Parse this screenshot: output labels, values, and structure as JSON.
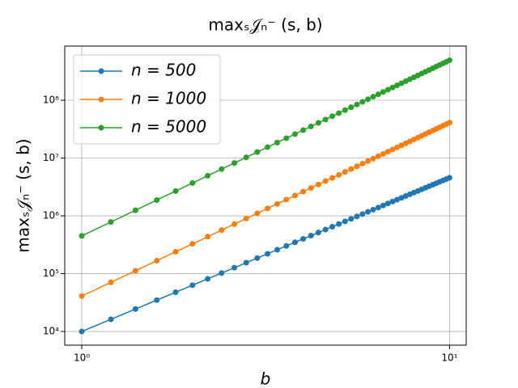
{
  "chart_data": {
    "type": "line",
    "title": "maxₛ𝒥ₙ⁻ (s, b)",
    "xlabel": "b",
    "ylabel": "maxₛ𝒥ₙ⁻ (s, b)",
    "xscale": "log",
    "yscale": "log",
    "grid": true,
    "legend": "upper left",
    "xlim": [
      0.899,
      11.1
    ],
    "ylim": [
      5800,
      865000000
    ],
    "xticks": [
      {
        "value": 1,
        "label": "10⁰"
      },
      {
        "value": 10,
        "label": "10¹"
      }
    ],
    "yticks": [
      {
        "value": 10000,
        "label": "10⁴"
      },
      {
        "value": 100000,
        "label": "10⁵"
      },
      {
        "value": 1000000,
        "label": "10⁶"
      },
      {
        "value": 10000000,
        "label": "10⁷"
      },
      {
        "value": 100000000,
        "label": "10⁸"
      }
    ],
    "x": [
      1.0,
      1.2,
      1.4,
      1.6,
      1.8,
      2.0,
      2.2,
      2.4,
      2.6,
      2.8,
      3.0,
      3.2,
      3.4,
      3.6,
      3.8,
      4.0,
      4.2,
      4.4,
      4.6,
      4.8,
      5.0,
      5.2,
      5.4,
      5.6,
      5.8,
      6.0,
      6.2,
      6.4,
      6.6,
      6.8,
      7.0,
      7.2,
      7.4,
      7.6,
      7.8,
      8.0,
      8.2,
      8.4,
      8.6,
      8.8,
      9.0,
      9.2,
      9.4,
      9.6,
      9.8,
      10.0
    ],
    "series": [
      {
        "name": "n = 500",
        "color": "#1f77b4",
        "values": [
          10000,
          16240,
          24470,
          34910,
          47770,
          63180,
          81430,
          102600,
          127000,
          154700,
          185800,
          220600,
          259300,
          301900,
          348500,
          399600,
          454800,
          514900,
          579400,
          648600,
          723300,
          802900,
          887600,
          977700,
          1073000,
          1175000,
          1282000,
          1395000,
          1513000,
          1639000,
          1770000,
          1907000,
          2051000,
          2203000,
          2360000,
          2525000,
          2696000,
          2875000,
          3061000,
          3254000,
          3453000,
          3662000,
          3877000,
          4102000,
          4332000,
          4571000
        ]
      },
      {
        "name": "n = 1000",
        "color": "#ff7f0e",
        "values": [
          41000,
          70850,
          112500,
          167900,
          239100,
          328000,
          436600,
          566800,
          720600,
          900000,
          1107000,
          1343000,
          1611000,
          1913000,
          2250000,
          2624000,
          3038000,
          3493000,
          3991000,
          4534000,
          5125000,
          5765000,
          6456000,
          7200000,
          8000000,
          8856000,
          9771000,
          10750000,
          11790000,
          12890000,
          14060000,
          15300000,
          16610000,
          18000000,
          19460000,
          20990000,
          22610000,
          24300000,
          26080000,
          27940000,
          29890000,
          31930000,
          34050000,
          36270000,
          38590000,
          41000000
        ]
      },
      {
        "name": "n = 5000",
        "color": "#2ca02c",
        "values": [
          450000,
          783300,
          1251000,
          1878000,
          2686000,
          3700000,
          4942000,
          6439000,
          8211000,
          10290000,
          12680000,
          15430000,
          18550000,
          22070000,
          26010000,
          30400000,
          35250000,
          40610000,
          46470000,
          52890000,
          59870000,
          67440000,
          75640000,
          84470000,
          93970000,
          104200000,
          115100000,
          126700000,
          139100000,
          152300000,
          166400000,
          181200000,
          197000000,
          213600000,
          231100000,
          249600000,
          269000000,
          289400000,
          310900000,
          333300000,
          356900000,
          381500000,
          407300000,
          434200000,
          462200000,
          493000000
        ]
      }
    ]
  }
}
